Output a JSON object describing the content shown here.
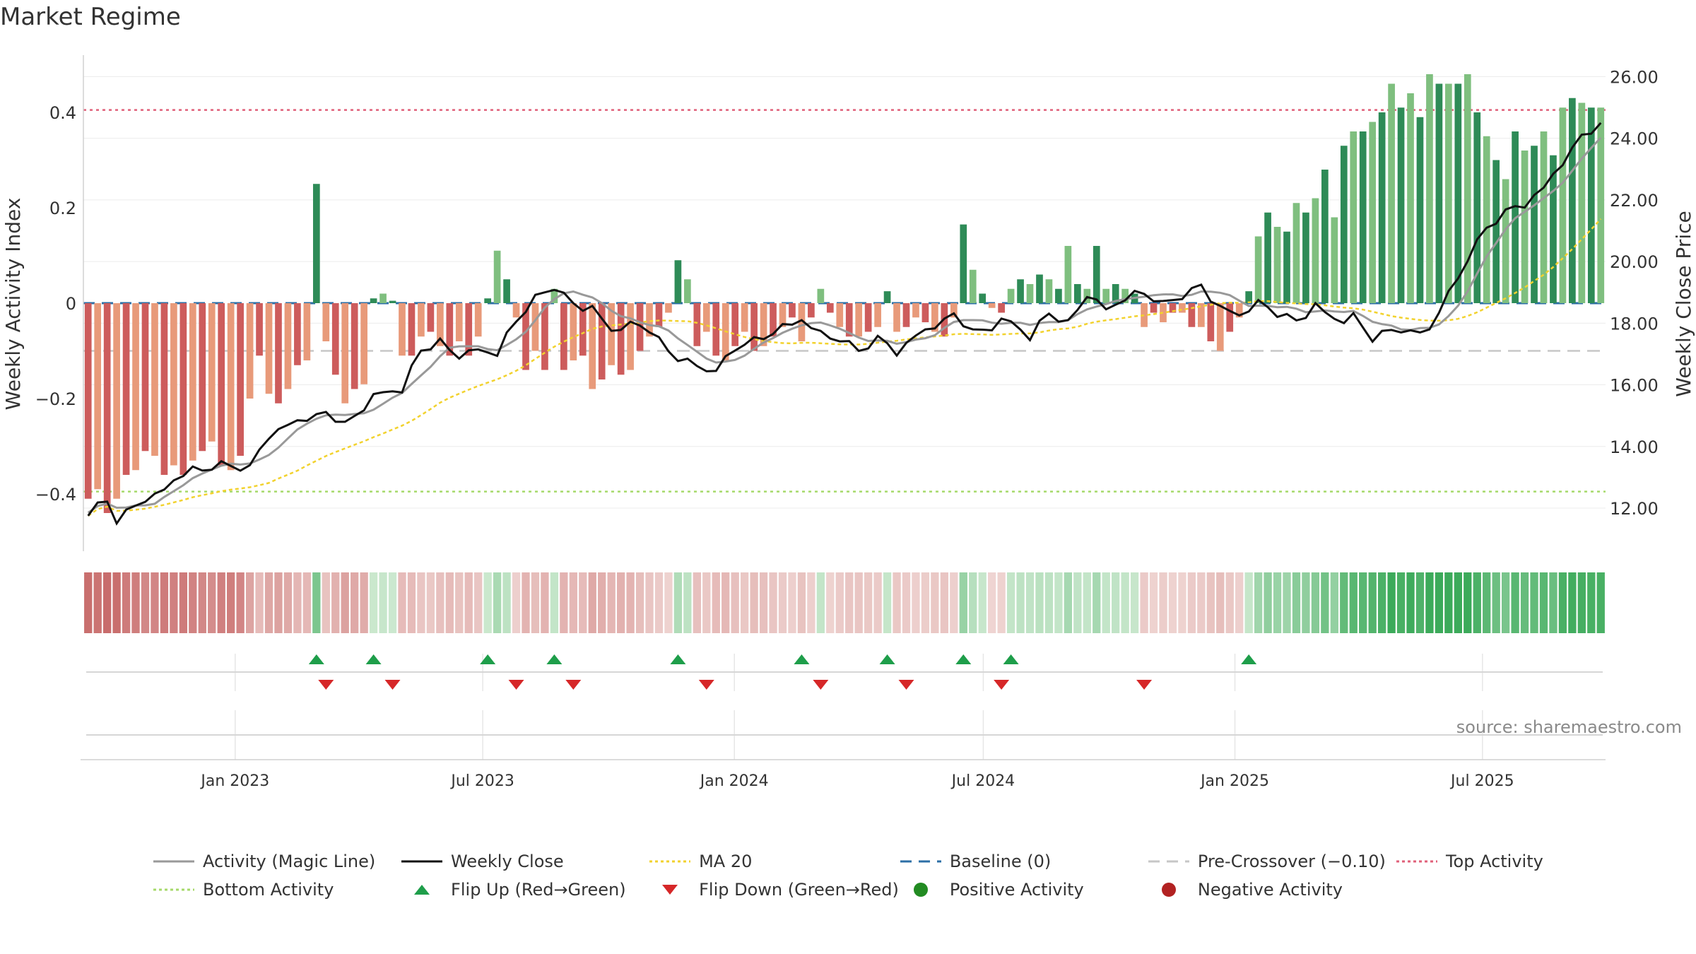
{
  "title": "Market Regime",
  "source": "source: sharemaestro.com",
  "colors": {
    "magic": "#999999",
    "close": "#111111",
    "ma": "#f2d22e",
    "baseline": "#2c6fa6",
    "precross": "#c7c7c7",
    "top": "#e0607a",
    "bottom": "#a6d96a",
    "pos_dark": "#2e8b57",
    "pos_light": "#7fbf7f",
    "neg_dark": "#cd5c5c",
    "neg_light": "#e89a7a",
    "flip_up": "#1e9e4a",
    "flip_down": "#d62728"
  },
  "legend": [
    {
      "label": "Activity (Magic Line)",
      "kind": "line",
      "color": "#999999"
    },
    {
      "label": "Weekly Close",
      "kind": "line",
      "color": "#111111"
    },
    {
      "label": "MA 20",
      "kind": "dotted",
      "color": "#f2d22e"
    },
    {
      "label": "Baseline (0)",
      "kind": "dashed",
      "color": "#2c6fa6"
    },
    {
      "label": "Pre-Crossover (−0.10)",
      "kind": "dashed",
      "color": "#c7c7c7"
    },
    {
      "label": "Top Activity",
      "kind": "dotted",
      "color": "#e0607a"
    },
    {
      "label": "Bottom Activity",
      "kind": "dotted",
      "color": "#a6d96a"
    },
    {
      "label": "Flip Up (Red→Green)",
      "kind": "tri-up",
      "color": "#1e9e4a"
    },
    {
      "label": "Flip Down (Green→Red)",
      "kind": "tri-down",
      "color": "#d62728"
    },
    {
      "label": "Positive Activity",
      "kind": "dot",
      "color": "#228b22"
    },
    {
      "label": "Negative Activity",
      "kind": "dot",
      "color": "#b22222"
    }
  ],
  "chart_data": {
    "type": "bar",
    "x_axis": {
      "start": "2022-09-12",
      "end": "2025-09-29",
      "ticks": [
        "Jan 2023",
        "Jul 2023",
        "Jan 2024",
        "Jul 2024",
        "Jan 2025",
        "Jul 2025"
      ]
    },
    "left_axis": {
      "label": "Weekly Activity Index",
      "ylim": [
        -0.52,
        0.52
      ],
      "ticks": [
        "−0.4",
        "−0.2",
        "0",
        "0.2",
        "0.4"
      ]
    },
    "right_axis": {
      "label": "Weekly Close Price",
      "ylim": [
        10.6,
        26.7
      ],
      "ticks": [
        "12.00",
        "14.00",
        "16.00",
        "18.00",
        "20.00",
        "22.00",
        "24.00",
        "26.00"
      ]
    },
    "reference_lines": {
      "top_activity": 0.405,
      "bottom_activity": -0.395,
      "baseline": 0,
      "pre_crossover": -0.1
    },
    "weeks": 160,
    "activity_anchors": [
      [
        0,
        -0.41
      ],
      [
        1,
        -0.39
      ],
      [
        2,
        -0.44
      ],
      [
        3,
        -0.41
      ],
      [
        4,
        -0.36
      ],
      [
        5,
        -0.35
      ],
      [
        6,
        -0.31
      ],
      [
        7,
        -0.32
      ],
      [
        8,
        -0.36
      ],
      [
        9,
        -0.34
      ],
      [
        10,
        -0.36
      ],
      [
        11,
        -0.33
      ],
      [
        12,
        -0.31
      ],
      [
        13,
        -0.29
      ],
      [
        14,
        -0.34
      ],
      [
        15,
        -0.35
      ],
      [
        16,
        -0.32
      ],
      [
        17,
        -0.2
      ],
      [
        18,
        -0.11
      ],
      [
        19,
        -0.19
      ],
      [
        20,
        -0.21
      ],
      [
        21,
        -0.18
      ],
      [
        22,
        -0.13
      ],
      [
        23,
        -0.12
      ],
      [
        24,
        0.25
      ],
      [
        25,
        -0.08
      ],
      [
        26,
        -0.15
      ],
      [
        27,
        -0.21
      ],
      [
        28,
        -0.18
      ],
      [
        29,
        -0.17
      ],
      [
        30,
        0.01
      ],
      [
        31,
        0.02
      ],
      [
        32,
        0.005
      ],
      [
        33,
        -0.11
      ],
      [
        34,
        -0.11
      ],
      [
        35,
        -0.07
      ],
      [
        36,
        -0.06
      ],
      [
        37,
        -0.09
      ],
      [
        38,
        -0.11
      ],
      [
        39,
        -0.08
      ],
      [
        40,
        -0.11
      ],
      [
        41,
        -0.07
      ],
      [
        42,
        0.01
      ],
      [
        43,
        0.11
      ],
      [
        44,
        0.05
      ],
      [
        45,
        -0.03
      ],
      [
        46,
        -0.14
      ],
      [
        47,
        -0.1
      ],
      [
        48,
        -0.14
      ],
      [
        49,
        0.03
      ],
      [
        50,
        -0.14
      ],
      [
        51,
        -0.12
      ],
      [
        52,
        -0.11
      ],
      [
        53,
        -0.18
      ],
      [
        54,
        -0.16
      ],
      [
        55,
        -0.13
      ],
      [
        56,
        -0.15
      ],
      [
        57,
        -0.14
      ],
      [
        58,
        -0.1
      ],
      [
        59,
        -0.07
      ],
      [
        60,
        -0.05
      ],
      [
        61,
        -0.02
      ],
      [
        62,
        0.09
      ],
      [
        63,
        0.05
      ],
      [
        64,
        -0.09
      ],
      [
        65,
        -0.06
      ],
      [
        66,
        -0.11
      ],
      [
        67,
        -0.12
      ],
      [
        68,
        -0.09
      ],
      [
        69,
        -0.06
      ],
      [
        70,
        -0.1
      ],
      [
        71,
        -0.09
      ],
      [
        72,
        -0.07
      ],
      [
        73,
        -0.05
      ],
      [
        74,
        -0.03
      ],
      [
        75,
        -0.08
      ],
      [
        76,
        -0.03
      ],
      [
        77,
        0.03
      ],
      [
        78,
        -0.02
      ],
      [
        79,
        -0.05
      ],
      [
        80,
        -0.07
      ],
      [
        81,
        -0.07
      ],
      [
        82,
        -0.06
      ],
      [
        83,
        -0.05
      ],
      [
        84,
        0.025
      ],
      [
        85,
        -0.06
      ],
      [
        86,
        -0.05
      ],
      [
        87,
        -0.03
      ],
      [
        88,
        -0.04
      ],
      [
        89,
        -0.06
      ],
      [
        90,
        -0.07
      ],
      [
        91,
        -0.03
      ],
      [
        92,
        0.165
      ],
      [
        93,
        0.07
      ],
      [
        94,
        0.02
      ],
      [
        95,
        -0.01
      ],
      [
        96,
        -0.02
      ],
      [
        97,
        0.03
      ],
      [
        98,
        0.05
      ],
      [
        99,
        0.04
      ],
      [
        100,
        0.06
      ],
      [
        101,
        0.05
      ],
      [
        102,
        0.03
      ],
      [
        103,
        0.12
      ],
      [
        104,
        0.04
      ],
      [
        105,
        0.03
      ],
      [
        106,
        0.12
      ],
      [
        107,
        0.03
      ],
      [
        108,
        0.04
      ],
      [
        109,
        0.03
      ],
      [
        110,
        0.02
      ],
      [
        111,
        -0.05
      ],
      [
        112,
        -0.02
      ],
      [
        113,
        -0.04
      ],
      [
        114,
        -0.02
      ],
      [
        115,
        -0.02
      ],
      [
        116,
        -0.05
      ],
      [
        117,
        -0.05
      ],
      [
        118,
        -0.08
      ],
      [
        119,
        -0.1
      ],
      [
        120,
        -0.06
      ],
      [
        121,
        -0.03
      ],
      [
        122,
        0.025
      ],
      [
        123,
        0.14
      ],
      [
        124,
        0.19
      ],
      [
        125,
        0.16
      ],
      [
        126,
        0.15
      ],
      [
        127,
        0.21
      ],
      [
        128,
        0.19
      ],
      [
        129,
        0.22
      ],
      [
        130,
        0.28
      ],
      [
        131,
        0.18
      ],
      [
        132,
        0.33
      ],
      [
        133,
        0.36
      ],
      [
        134,
        0.36
      ],
      [
        135,
        0.38
      ],
      [
        136,
        0.4
      ],
      [
        137,
        0.46
      ],
      [
        138,
        0.41
      ],
      [
        139,
        0.44
      ],
      [
        140,
        0.39
      ],
      [
        141,
        0.48
      ],
      [
        142,
        0.46
      ],
      [
        143,
        0.46
      ],
      [
        144,
        0.46
      ],
      [
        145,
        0.48
      ],
      [
        146,
        0.4
      ],
      [
        147,
        0.35
      ],
      [
        148,
        0.3
      ],
      [
        149,
        0.26
      ],
      [
        150,
        0.36
      ],
      [
        151,
        0.32
      ],
      [
        152,
        0.33
      ],
      [
        153,
        0.36
      ],
      [
        154,
        0.31
      ],
      [
        155,
        0.41
      ],
      [
        156,
        0.43
      ],
      [
        157,
        0.42
      ],
      [
        158,
        0.41
      ],
      [
        159,
        0.41
      ]
    ],
    "close_anchors": [
      [
        0,
        12.0
      ],
      [
        2,
        12.3
      ],
      [
        3,
        11.7
      ],
      [
        5,
        12.2
      ],
      [
        7,
        12.5
      ],
      [
        9,
        13.0
      ],
      [
        11,
        13.2
      ],
      [
        14,
        13.4
      ],
      [
        17,
        13.3
      ],
      [
        19,
        14.4
      ],
      [
        21,
        14.6
      ],
      [
        23,
        14.8
      ],
      [
        25,
        15.0
      ],
      [
        27,
        14.6
      ],
      [
        29,
        15.2
      ],
      [
        31,
        15.7
      ],
      [
        33,
        16.0
      ],
      [
        35,
        17.2
      ],
      [
        37,
        17.5
      ],
      [
        39,
        17.0
      ],
      [
        41,
        17.3
      ],
      [
        43,
        17.0
      ],
      [
        45,
        18.1
      ],
      [
        47,
        18.8
      ],
      [
        49,
        19.2
      ],
      [
        51,
        18.6
      ],
      [
        53,
        18.5
      ],
      [
        55,
        17.6
      ],
      [
        57,
        17.9
      ],
      [
        59,
        17.7
      ],
      [
        61,
        17.0
      ],
      [
        63,
        16.6
      ],
      [
        65,
        16.5
      ],
      [
        67,
        16.9
      ],
      [
        69,
        17.5
      ],
      [
        71,
        17.6
      ],
      [
        73,
        18.0
      ],
      [
        75,
        18.2
      ],
      [
        77,
        17.6
      ],
      [
        79,
        17.5
      ],
      [
        81,
        17.1
      ],
      [
        83,
        17.5
      ],
      [
        85,
        17.1
      ],
      [
        87,
        17.5
      ],
      [
        89,
        17.8
      ],
      [
        91,
        18.2
      ],
      [
        93,
        17.6
      ],
      [
        95,
        17.8
      ],
      [
        97,
        18.0
      ],
      [
        99,
        17.7
      ],
      [
        101,
        18.4
      ],
      [
        103,
        18.1
      ],
      [
        105,
        19.0
      ],
      [
        107,
        18.6
      ],
      [
        109,
        18.8
      ],
      [
        111,
        19.0
      ],
      [
        113,
        18.6
      ],
      [
        115,
        18.9
      ],
      [
        117,
        19.2
      ],
      [
        119,
        18.5
      ],
      [
        121,
        18.1
      ],
      [
        123,
        18.6
      ],
      [
        125,
        18.2
      ],
      [
        127,
        18.0
      ],
      [
        129,
        18.4
      ],
      [
        131,
        18.2
      ],
      [
        133,
        18.3
      ],
      [
        135,
        17.6
      ],
      [
        137,
        17.9
      ],
      [
        139,
        17.8
      ],
      [
        141,
        17.9
      ],
      [
        143,
        18.9
      ],
      [
        145,
        20.1
      ],
      [
        147,
        21.1
      ],
      [
        149,
        21.6
      ],
      [
        151,
        21.9
      ],
      [
        153,
        22.3
      ],
      [
        155,
        23.1
      ],
      [
        157,
        24.0
      ],
      [
        159,
        24.3
      ]
    ],
    "flip_up_weeks": [
      24,
      30,
      42,
      49,
      62,
      75,
      84,
      92,
      97,
      122
    ],
    "flip_down_weeks": [
      25,
      32,
      45,
      51,
      65,
      77,
      86,
      96,
      111
    ]
  }
}
